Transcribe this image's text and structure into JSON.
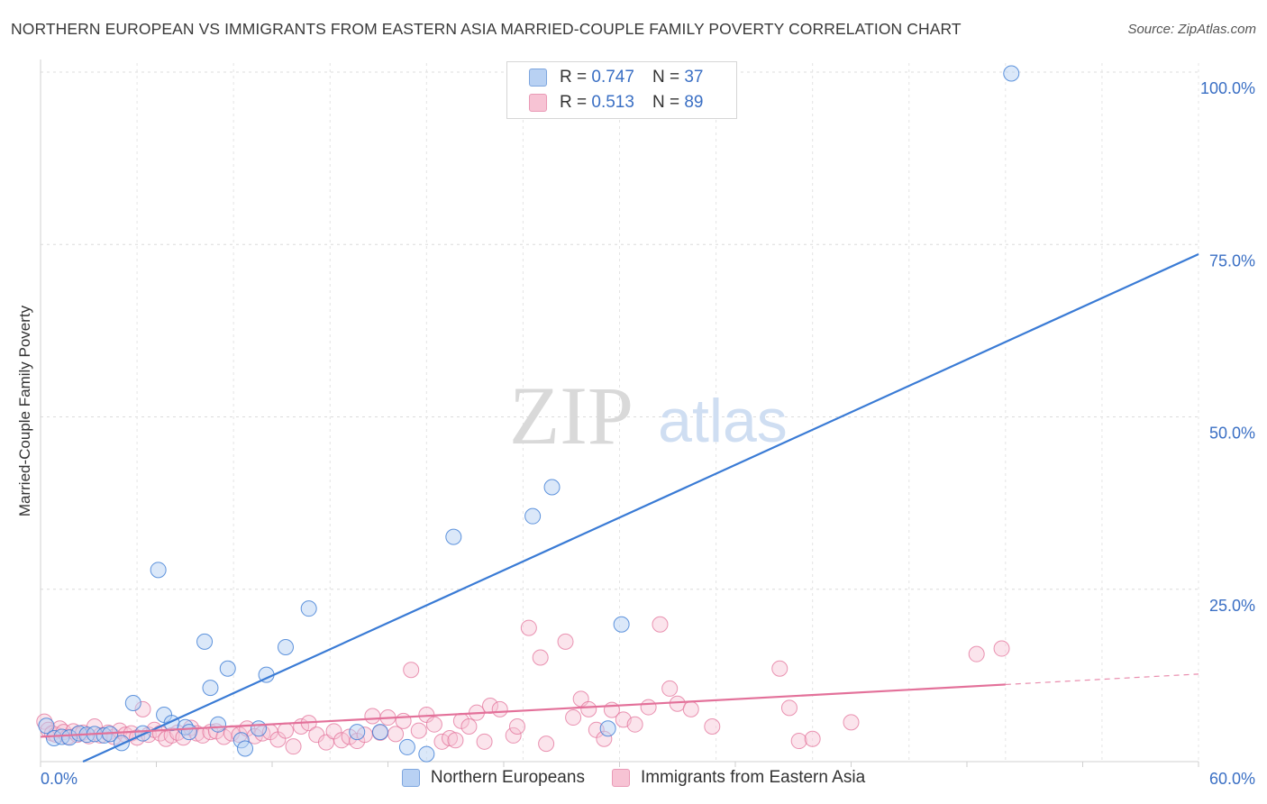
{
  "title": "NORTHERN EUROPEAN VS IMMIGRANTS FROM EASTERN ASIA MARRIED-COUPLE FAMILY POVERTY CORRELATION CHART",
  "source": "Source: ZipAtlas.com",
  "watermark": {
    "zip": "ZIP",
    "atlas": "atlas"
  },
  "legend_top": [
    {
      "r_label": "R = ",
      "r_value": "0.747",
      "n_label": "N = ",
      "n_value": "37"
    },
    {
      "r_label": "R = ",
      "r_value": "0.513",
      "n_label": "N = ",
      "n_value": "89"
    }
  ],
  "chart_data": {
    "type": "scatter",
    "title": "NORTHERN EUROPEAN VS IMMIGRANTS FROM EASTERN ASIA MARRIED-COUPLE FAMILY POVERTY CORRELATION CHART",
    "ylabel": "Married-Couple Family Poverty",
    "xlabel": "",
    "xlim": [
      0,
      60
    ],
    "ylim": [
      0,
      100
    ],
    "x_tick_labels": [
      {
        "value": 0,
        "label": "0.0%"
      },
      {
        "value": 60,
        "label": "60.0%"
      }
    ],
    "y_tick_labels": [
      {
        "value": 25,
        "label": "25.0%"
      },
      {
        "value": 50,
        "label": "50.0%"
      },
      {
        "value": 75,
        "label": "75.0%"
      },
      {
        "value": 100,
        "label": "100.0%"
      }
    ],
    "series": [
      {
        "name": "Northern Europeans",
        "color": "#3a7bd5",
        "fill": "#b8d1f3",
        "R": 0.747,
        "N": 37,
        "trend": {
          "x0": 2.2,
          "y0": 0,
          "x1": 60,
          "y1": 73.6,
          "dash_from": null
        },
        "points": [
          [
            0.3,
            5.2
          ],
          [
            0.7,
            3.4
          ],
          [
            1.1,
            3.6
          ],
          [
            1.5,
            3.5
          ],
          [
            2.0,
            4.1
          ],
          [
            2.4,
            3.9
          ],
          [
            2.8,
            4.0
          ],
          [
            3.3,
            3.8
          ],
          [
            3.6,
            4.0
          ],
          [
            4.2,
            2.7
          ],
          [
            4.8,
            8.5
          ],
          [
            5.3,
            4.1
          ],
          [
            6.1,
            27.8
          ],
          [
            6.4,
            6.8
          ],
          [
            6.8,
            5.6
          ],
          [
            7.5,
            5.0
          ],
          [
            7.7,
            4.3
          ],
          [
            8.5,
            17.4
          ],
          [
            8.8,
            10.7
          ],
          [
            9.2,
            5.4
          ],
          [
            9.7,
            13.5
          ],
          [
            10.4,
            3.1
          ],
          [
            10.6,
            1.9
          ],
          [
            11.3,
            4.8
          ],
          [
            11.7,
            12.6
          ],
          [
            12.7,
            16.6
          ],
          [
            13.9,
            22.2
          ],
          [
            16.4,
            4.3
          ],
          [
            17.6,
            4.3
          ],
          [
            19.0,
            2.1
          ],
          [
            20.0,
            1.1
          ],
          [
            21.4,
            32.6
          ],
          [
            25.5,
            35.6
          ],
          [
            26.5,
            39.8
          ],
          [
            29.4,
            4.8
          ],
          [
            30.1,
            19.9
          ],
          [
            50.3,
            99.8
          ]
        ]
      },
      {
        "name": "Immigrants from Eastern Asia",
        "color": "#e3719a",
        "fill": "#f7c3d4",
        "R": 0.513,
        "N": 89,
        "trend": {
          "x0": 0,
          "y0": 3.6,
          "x1": 60,
          "y1": 12.7,
          "dash_from": 50.0
        },
        "points": [
          [
            0.2,
            5.8
          ],
          [
            0.4,
            4.6
          ],
          [
            0.6,
            4.1
          ],
          [
            0.8,
            3.9
          ],
          [
            1.0,
            4.8
          ],
          [
            1.2,
            4.3
          ],
          [
            1.4,
            3.6
          ],
          [
            1.7,
            4.4
          ],
          [
            1.9,
            3.9
          ],
          [
            2.2,
            4.2
          ],
          [
            2.5,
            3.7
          ],
          [
            2.8,
            5.1
          ],
          [
            3.1,
            3.8
          ],
          [
            3.5,
            4.2
          ],
          [
            3.8,
            3.6
          ],
          [
            4.1,
            4.5
          ],
          [
            4.4,
            3.9
          ],
          [
            4.7,
            4.1
          ],
          [
            5.0,
            3.5
          ],
          [
            5.3,
            7.6
          ],
          [
            5.6,
            3.9
          ],
          [
            5.9,
            4.6
          ],
          [
            6.2,
            4.1
          ],
          [
            6.5,
            3.3
          ],
          [
            6.8,
            3.8
          ],
          [
            7.1,
            4.2
          ],
          [
            7.4,
            3.5
          ],
          [
            7.8,
            4.9
          ],
          [
            8.1,
            4.1
          ],
          [
            8.4,
            3.8
          ],
          [
            8.8,
            4.3
          ],
          [
            9.1,
            4.4
          ],
          [
            9.5,
            3.6
          ],
          [
            9.9,
            4.1
          ],
          [
            10.3,
            3.9
          ],
          [
            10.7,
            4.8
          ],
          [
            11.1,
            3.7
          ],
          [
            11.5,
            4.1
          ],
          [
            11.9,
            4.3
          ],
          [
            12.3,
            3.2
          ],
          [
            12.7,
            4.5
          ],
          [
            13.1,
            2.2
          ],
          [
            13.5,
            5.1
          ],
          [
            13.9,
            5.6
          ],
          [
            14.3,
            3.9
          ],
          [
            14.8,
            2.8
          ],
          [
            15.2,
            4.4
          ],
          [
            15.6,
            3.1
          ],
          [
            16.0,
            3.6
          ],
          [
            16.4,
            3.0
          ],
          [
            16.8,
            3.9
          ],
          [
            17.2,
            6.6
          ],
          [
            17.6,
            4.2
          ],
          [
            18.0,
            6.4
          ],
          [
            18.4,
            4.0
          ],
          [
            18.8,
            5.9
          ],
          [
            19.2,
            13.3
          ],
          [
            19.6,
            4.5
          ],
          [
            20.0,
            6.8
          ],
          [
            20.4,
            5.4
          ],
          [
            20.8,
            2.9
          ],
          [
            21.2,
            3.4
          ],
          [
            21.5,
            3.1
          ],
          [
            21.8,
            5.9
          ],
          [
            22.2,
            5.1
          ],
          [
            22.6,
            7.1
          ],
          [
            23.0,
            2.9
          ],
          [
            23.3,
            8.1
          ],
          [
            23.8,
            7.6
          ],
          [
            24.5,
            3.8
          ],
          [
            24.7,
            5.1
          ],
          [
            25.3,
            19.4
          ],
          [
            25.9,
            15.1
          ],
          [
            26.2,
            2.6
          ],
          [
            27.2,
            17.4
          ],
          [
            27.6,
            6.4
          ],
          [
            28.0,
            9.1
          ],
          [
            28.4,
            7.6
          ],
          [
            28.8,
            4.6
          ],
          [
            29.2,
            3.3
          ],
          [
            29.6,
            7.5
          ],
          [
            30.2,
            6.1
          ],
          [
            30.8,
            5.4
          ],
          [
            31.5,
            7.9
          ],
          [
            32.1,
            19.9
          ],
          [
            32.6,
            10.6
          ],
          [
            33.0,
            8.4
          ],
          [
            33.7,
            7.6
          ],
          [
            34.8,
            5.1
          ]
        ]
      }
    ],
    "extra_points_eastern_asia": [
      [
        38.3,
        13.5
      ],
      [
        38.8,
        7.8
      ],
      [
        39.3,
        3.0
      ],
      [
        40.0,
        3.3
      ],
      [
        42.0,
        5.7
      ],
      [
        48.5,
        15.6
      ],
      [
        49.8,
        16.4
      ]
    ]
  },
  "legend_bottom": [
    {
      "label": "Northern Europeans"
    },
    {
      "label": "Immigrants from Eastern Asia"
    }
  ]
}
